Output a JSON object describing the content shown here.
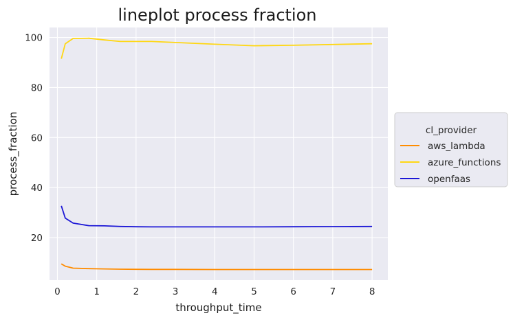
{
  "chart_data": {
    "type": "line",
    "title": "lineplot process fraction",
    "xlabel": "throughput_time",
    "ylabel": "process_fraction",
    "xlim": [
      -0.2,
      8.4
    ],
    "ylim": [
      3,
      104
    ],
    "xticks": [
      0,
      1,
      2,
      3,
      4,
      5,
      6,
      7,
      8
    ],
    "yticks": [
      20,
      40,
      60,
      80,
      100
    ],
    "grid": true,
    "legend": {
      "title": "cl_provider",
      "placement": "center-right outside"
    },
    "x": [
      0.1,
      0.2,
      0.4,
      0.8,
      1.2,
      1.6,
      2.0,
      2.4,
      3.0,
      4.0,
      5.0,
      6.0,
      7.0,
      8.0
    ],
    "series": [
      {
        "name": "aws_lambda",
        "color": "#ff8c00",
        "values": [
          9.5,
          8.6,
          7.8,
          7.6,
          7.5,
          7.4,
          7.35,
          7.3,
          7.3,
          7.25,
          7.25,
          7.25,
          7.25,
          7.25
        ]
      },
      {
        "name": "azure_functions",
        "color": "#ffd712",
        "values": [
          91.5,
          97.5,
          99.6,
          99.7,
          99.0,
          98.4,
          98.4,
          98.4,
          98.0,
          97.3,
          96.7,
          96.9,
          97.2,
          97.5
        ]
      },
      {
        "name": "openfaas",
        "color": "#1c17d6",
        "values": [
          32.7,
          27.8,
          25.8,
          24.8,
          24.7,
          24.45,
          24.35,
          24.3,
          24.3,
          24.3,
          24.3,
          24.35,
          24.4,
          24.45
        ]
      }
    ]
  }
}
